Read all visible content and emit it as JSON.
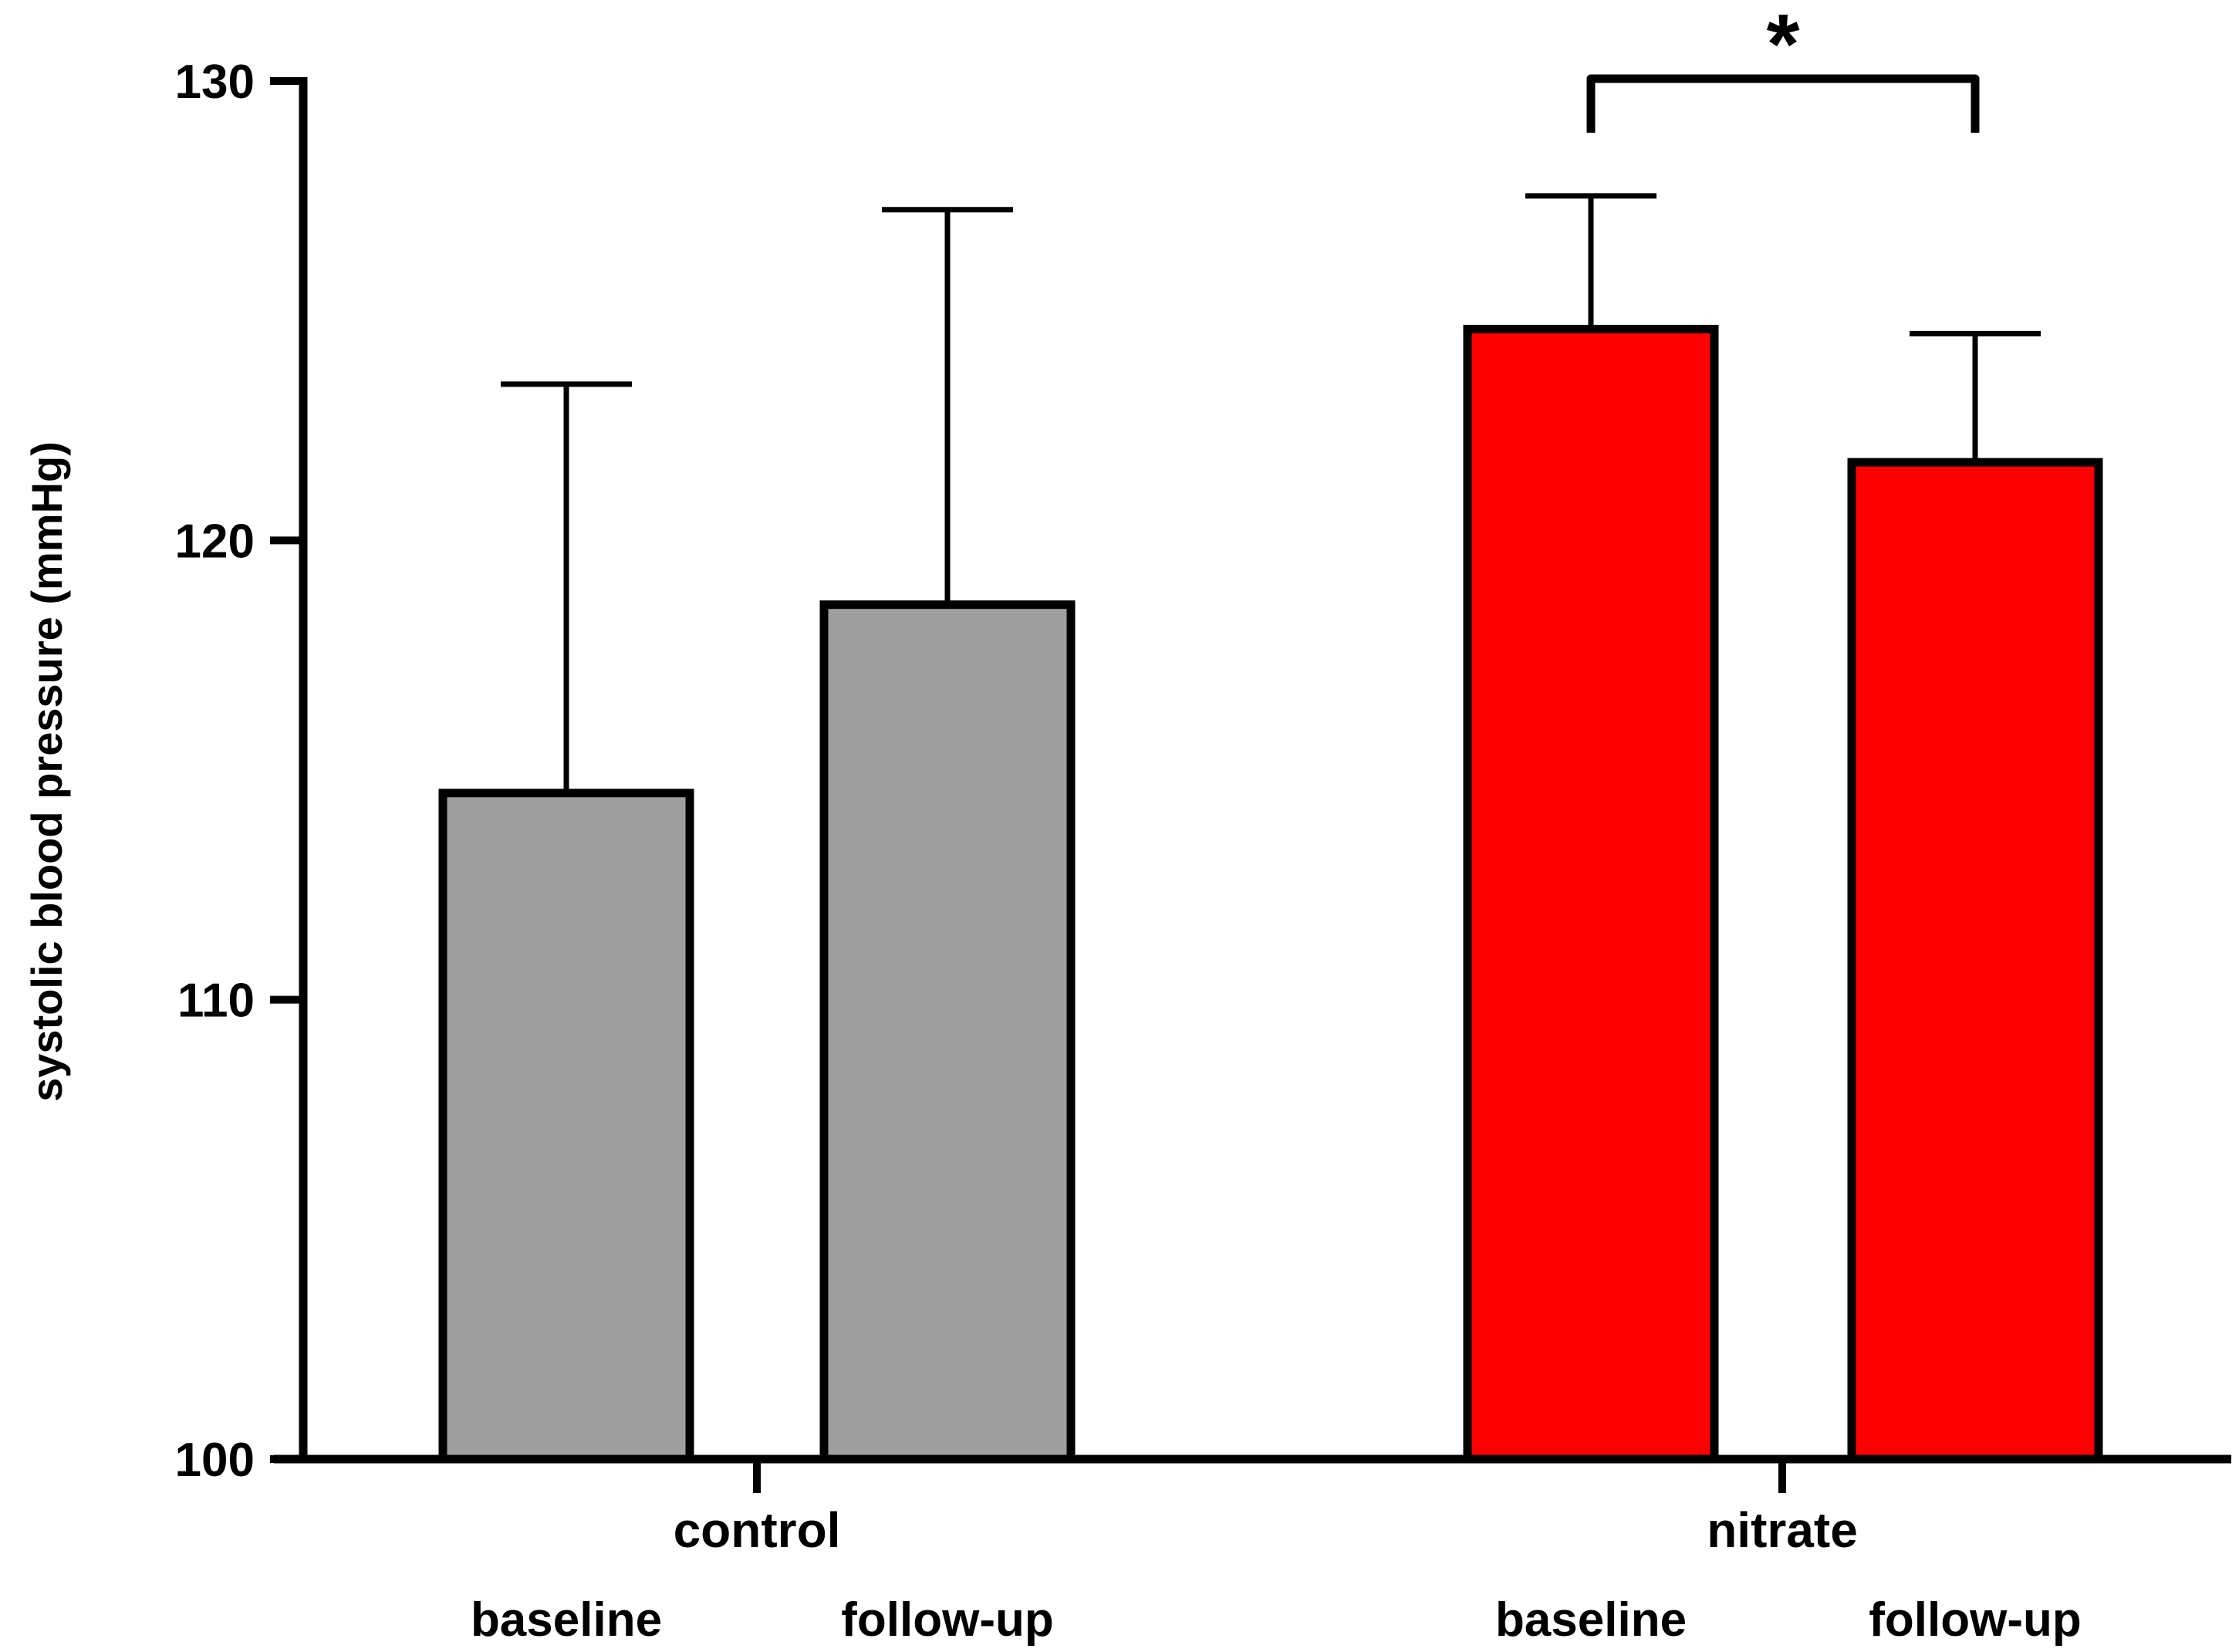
{
  "chart_data": {
    "type": "bar",
    "ylabel": "systolic blood pressure (mmHg)",
    "ylim": [
      100,
      130
    ],
    "yticks": [
      100,
      110,
      120,
      130
    ],
    "groups": [
      {
        "name": "control",
        "color": "#9e9e9e",
        "bars": [
          {
            "label": "baseline",
            "value": 114.5,
            "error": 8.9
          },
          {
            "label": "follow-up",
            "value": 118.6,
            "error": 8.6
          }
        ]
      },
      {
        "name": "nitrate",
        "color": "#ff0000",
        "bars": [
          {
            "label": "baseline",
            "value": 124.6,
            "error": 2.9
          },
          {
            "label": "follow-up",
            "value": 121.7,
            "error": 2.8
          }
        ]
      }
    ],
    "significance": {
      "group": "nitrate",
      "between": [
        "baseline",
        "follow-up"
      ],
      "label": "*"
    }
  }
}
